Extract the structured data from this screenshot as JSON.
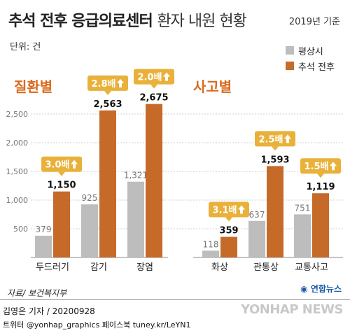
{
  "header": {
    "title": "추석 전후 응급의료센터",
    "subtitle": "환자 내원 현황",
    "year_note": "2019년 기준",
    "unit_note": "단위: 건"
  },
  "legend": {
    "normal_label": "평상시",
    "chuseok_label": "추석 전후"
  },
  "sections": {
    "disease_title": "질환별",
    "accident_title": "사고별"
  },
  "footer": {
    "source": "자료/ 보건복지부",
    "byline": "김영은 기자 / 20200928",
    "social": "트위터 @yonhap_graphics  페이스북 tuney.kr/LeYN1",
    "logo": "연합뉴스",
    "watermark": "YONHAP NEWS"
  },
  "colors": {
    "normal": "#bdbdbd",
    "chuseok": "#c66a2a",
    "badge": "#e9b13a",
    "section": "#d96b1f",
    "grid": "#cfcfcf"
  },
  "chart_data": [
    {
      "type": "bar",
      "title": "질환별",
      "ylim": [
        0,
        3000
      ],
      "yticks": [
        "500",
        "1,000",
        "1,500",
        "2,000",
        "2,500"
      ],
      "categories": [
        "두드러기",
        "감기",
        "장염"
      ],
      "series": [
        {
          "name": "평상시",
          "values": [
            379,
            925,
            1321
          ],
          "value_labels": [
            "379",
            "925",
            "1,321"
          ]
        },
        {
          "name": "추석 전후",
          "values": [
            1150,
            2563,
            2675
          ],
          "value_labels": [
            "1,150",
            "2,563",
            "2,675"
          ]
        }
      ],
      "ratios": [
        "3.0배",
        "2.8배",
        "2.0배"
      ]
    },
    {
      "type": "bar",
      "title": "사고별",
      "ylim": [
        0,
        3000
      ],
      "categories": [
        "화상",
        "관통상",
        "교통사고"
      ],
      "series": [
        {
          "name": "평상시",
          "values": [
            118,
            637,
            751
          ],
          "value_labels": [
            "118",
            "637",
            "751"
          ]
        },
        {
          "name": "추석 전후",
          "values": [
            359,
            1593,
            1119
          ],
          "value_labels": [
            "359",
            "1,593",
            "1,119"
          ]
        }
      ],
      "ratios": [
        "3.1배",
        "2.5배",
        "1.5배"
      ]
    }
  ]
}
